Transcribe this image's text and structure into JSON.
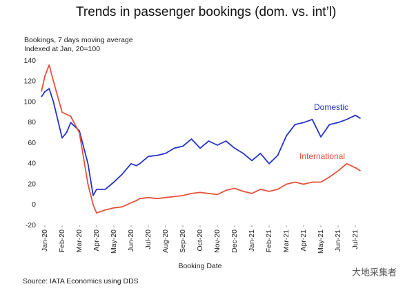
{
  "chart_data": {
    "type": "line",
    "title": "Trends in passenger bookings (dom. vs. int’l)",
    "subtitle": [
      "Bookings, 7 days moving average",
      "Indexed at Jan, 20=100"
    ],
    "x_label": "Booking Date",
    "source": "Source: IATA Economics using DDS",
    "watermark": "大地采集者",
    "x": [
      -0.2,
      0,
      0.25,
      0.5,
      1,
      1.25,
      1.5,
      2,
      2.5,
      2.8,
      3,
      3.5,
      4,
      4.5,
      5,
      5.3,
      5.5,
      6,
      6.5,
      7,
      7.5,
      8,
      8.5,
      9,
      9.5,
      10,
      10.5,
      11,
      11.5,
      12,
      12.5,
      13,
      13.5,
      14,
      14.5,
      15,
      15.5,
      16,
      16.5,
      17,
      17.5,
      18,
      18.3
    ],
    "series": [
      {
        "name": "Domestic",
        "color": "#2233cc",
        "values": [
          105,
          110,
          113,
          100,
          65,
          70,
          80,
          72,
          40,
          9,
          15,
          15,
          22,
          30,
          40,
          38,
          40,
          47,
          48,
          50,
          55,
          57,
          64,
          55,
          62,
          58,
          62,
          55,
          50,
          43,
          50,
          40,
          48,
          67,
          78,
          80,
          83,
          66,
          78,
          80,
          83,
          87,
          84
        ]
      },
      {
        "name": "International",
        "color": "#e8503a",
        "values": [
          110,
          125,
          136,
          120,
          90,
          88,
          86,
          70,
          20,
          0,
          -8,
          -5,
          -3,
          -2,
          2,
          4,
          6,
          7,
          6,
          7,
          8,
          9,
          11,
          12,
          11,
          10,
          14,
          16,
          13,
          11,
          15,
          13,
          15,
          20,
          22,
          20,
          22,
          22,
          27,
          33,
          40,
          36,
          33
        ]
      }
    ],
    "xlim": [
      -0.2,
      18.3
    ],
    "xticks": [
      {
        "value": 0,
        "label": "Jan-20"
      },
      {
        "value": 1,
        "label": "Feb-20"
      },
      {
        "value": 2,
        "label": "Mar-20"
      },
      {
        "value": 3,
        "label": "Apr-20"
      },
      {
        "value": 4,
        "label": "May-20"
      },
      {
        "value": 5,
        "label": "Jun-20"
      },
      {
        "value": 6,
        "label": "Jul-20"
      },
      {
        "value": 7,
        "label": "Aug-20"
      },
      {
        "value": 8,
        "label": "Sep-20"
      },
      {
        "value": 9,
        "label": "Oct-20"
      },
      {
        "value": 10,
        "label": "Nov-20"
      },
      {
        "value": 11,
        "label": "Dec-20"
      },
      {
        "value": 12,
        "label": "Jan-21"
      },
      {
        "value": 13,
        "label": "Feb-21"
      },
      {
        "value": 14,
        "label": "Mar-21"
      },
      {
        "value": 15,
        "label": "Apr-21"
      },
      {
        "value": 16,
        "label": "May-21"
      },
      {
        "value": 17,
        "label": "Jun-21"
      },
      {
        "value": 18,
        "label": "Jul-21"
      }
    ],
    "ylim": [
      -20,
      140
    ],
    "yticks": [
      -20,
      0,
      20,
      40,
      60,
      80,
      100,
      120,
      140
    ],
    "grid": false
  }
}
